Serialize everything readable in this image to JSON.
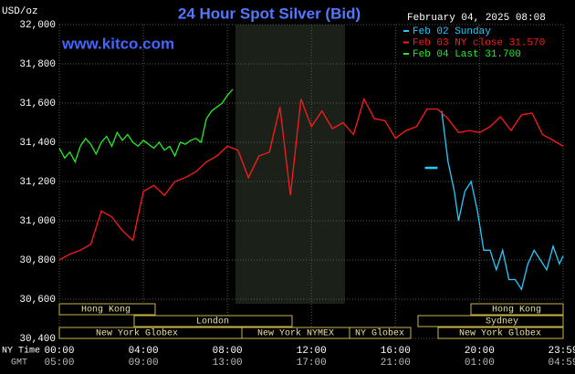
{
  "chart_data": {
    "type": "line",
    "title": "24 Hour Spot Silver (Bid)",
    "y_label": "USD/oz",
    "timestamp": "February 04, 2025 08:08",
    "watermark": "www.kitco.com",
    "x_row_labels": [
      "NY Time",
      "GMT"
    ],
    "xlim": [
      0,
      23.98
    ],
    "xticks": [
      {
        "value": 0,
        "label": "00:00"
      },
      {
        "value": 4,
        "label": "04:00"
      },
      {
        "value": 8,
        "label": "08:00"
      },
      {
        "value": 12,
        "label": "12:00"
      },
      {
        "value": 16,
        "label": "16:00"
      },
      {
        "value": 20,
        "label": "20:00"
      },
      {
        "value": 23.98,
        "label": "23:59"
      }
    ],
    "gmt_ticks": [
      "05:00",
      "09:00",
      "13:00",
      "17:00",
      "21:00",
      "01:00",
      "04:59"
    ],
    "ylim": [
      30400,
      32000
    ],
    "yticks": [
      {
        "value": 30400,
        "label": "30,400"
      },
      {
        "value": 30600,
        "label": "30,600"
      },
      {
        "value": 30800,
        "label": "30,800"
      },
      {
        "value": 31000,
        "label": "31,000"
      },
      {
        "value": 31200,
        "label": "31,200"
      },
      {
        "value": 31400,
        "label": "31,400"
      },
      {
        "value": 31600,
        "label": "31,600"
      },
      {
        "value": 31800,
        "label": "31,800"
      },
      {
        "value": 32000,
        "label": "32,000"
      }
    ],
    "grid": true,
    "sessions": [
      "Hong Kong",
      "Hong Kong",
      "London",
      "Sydney",
      "New York Globex",
      "New York NYMEX",
      "NY Globex",
      "New York Globex"
    ],
    "series": [
      {
        "name": "Feb 02 Sunday",
        "color": "#22ccff",
        "x": [
          17.4,
          18.0,
          18.1,
          18.2,
          18.5,
          18.8,
          19.0,
          19.3,
          19.6,
          19.9,
          20.2,
          20.5,
          20.8,
          21.1,
          21.4,
          21.7,
          22.0,
          22.3,
          22.6,
          22.9,
          23.2,
          23.5,
          23.8,
          23.98
        ],
        "values": [
          31270,
          31270,
          null,
          31560,
          31300,
          31150,
          31000,
          31150,
          31200,
          31050,
          30850,
          30850,
          30750,
          30850,
          30700,
          30700,
          30650,
          30780,
          30850,
          30800,
          30750,
          30870,
          30780,
          30820
        ]
      },
      {
        "name": "Feb 03 NY close 31.570",
        "color": "#ff1a1a",
        "x": [
          0,
          0.5,
          1,
          1.5,
          2,
          2.5,
          3,
          3.5,
          4,
          4.5,
          5,
          5.5,
          6,
          6.5,
          7,
          7.5,
          8,
          8.5,
          9,
          9.5,
          10,
          10.5,
          11,
          11.5,
          12,
          12.5,
          13,
          13.5,
          14,
          14.5,
          15,
          15.5,
          16,
          16.5,
          17,
          17.5,
          18,
          18.5,
          19,
          19.5,
          20,
          20.5,
          21,
          21.5,
          22,
          22.5,
          23,
          23.5,
          23.98
        ],
        "values": [
          30800,
          30830,
          30850,
          30880,
          31050,
          31020,
          30950,
          30900,
          31150,
          31180,
          31130,
          31200,
          31220,
          31250,
          31300,
          31330,
          31380,
          31360,
          31220,
          31330,
          31350,
          31580,
          31130,
          31620,
          31480,
          31560,
          31470,
          31500,
          31440,
          31620,
          31520,
          31510,
          31420,
          31460,
          31480,
          31570,
          31570,
          31520,
          31450,
          31460,
          31450,
          31480,
          31530,
          31460,
          31540,
          31550,
          31440,
          31410,
          31380
        ]
      },
      {
        "name": "Feb 04 Last 31.700",
        "color": "#22ee22",
        "x": [
          0,
          0.25,
          0.5,
          0.75,
          1,
          1.25,
          1.5,
          1.75,
          2,
          2.25,
          2.5,
          2.75,
          3,
          3.25,
          3.5,
          3.75,
          4,
          4.25,
          4.5,
          4.75,
          5,
          5.25,
          5.5,
          5.75,
          6,
          6.25,
          6.5,
          6.75,
          7,
          7.25,
          7.5,
          7.75,
          8,
          8.25
        ],
        "values": [
          31370,
          31320,
          31350,
          31300,
          31380,
          31420,
          31390,
          31340,
          31400,
          31430,
          31380,
          31450,
          31410,
          31440,
          31400,
          31380,
          31410,
          31390,
          31370,
          31400,
          31360,
          31380,
          31330,
          31400,
          31390,
          31410,
          31420,
          31400,
          31520,
          31560,
          31580,
          31600,
          31640,
          31670
        ]
      }
    ]
  }
}
